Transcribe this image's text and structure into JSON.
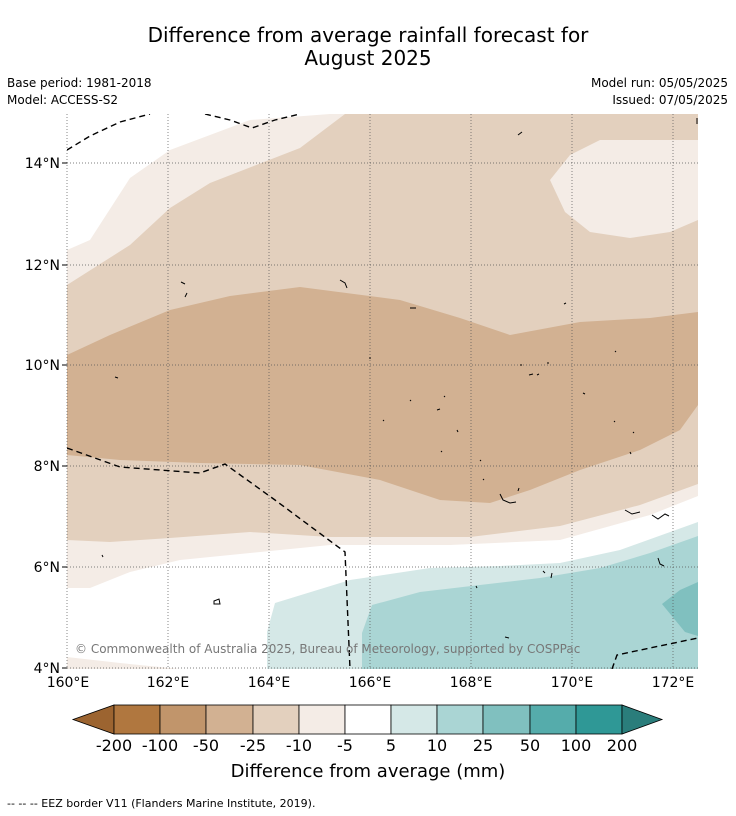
{
  "header": {
    "title_line1": "Difference from average rainfall forecast for",
    "title_line2": "August 2025",
    "base_period": "Base period: 1981-2018",
    "model": "Model: ACCESS-S2",
    "model_run": "Model run: 05/05/2025",
    "issued": "Issued: 07/05/2025"
  },
  "map": {
    "lat_labels": [
      "14°N",
      "12°N",
      "10°N",
      "8°N",
      "6°N",
      "4°N"
    ],
    "lon_labels": [
      "160°E",
      "162°E",
      "164°E",
      "166°E",
      "168°E",
      "170°E",
      "172°E"
    ],
    "copyright": "© Commonwealth of Australia 2025, Bureau of Meteorology, supported by COSPPac"
  },
  "colorbar": {
    "title": "Difference from average (mm)",
    "tick_labels": [
      "-200",
      "-100",
      "-50",
      "-25",
      "-10",
      "-5",
      "5",
      "10",
      "25",
      "50",
      "100",
      "200"
    ],
    "colors": [
      "#9c6430",
      "#b0773f",
      "#c1956b",
      "#d2b192",
      "#e3d0be",
      "#f4ece6",
      "#ffffff",
      "#d5e8e7",
      "#aad5d4",
      "#80c0bf",
      "#55acab",
      "#2f9896",
      "#2a7d7b"
    ]
  },
  "footnote": "--  --  -- EEZ border V11 (Flanders Marine Institute, 2019)."
}
